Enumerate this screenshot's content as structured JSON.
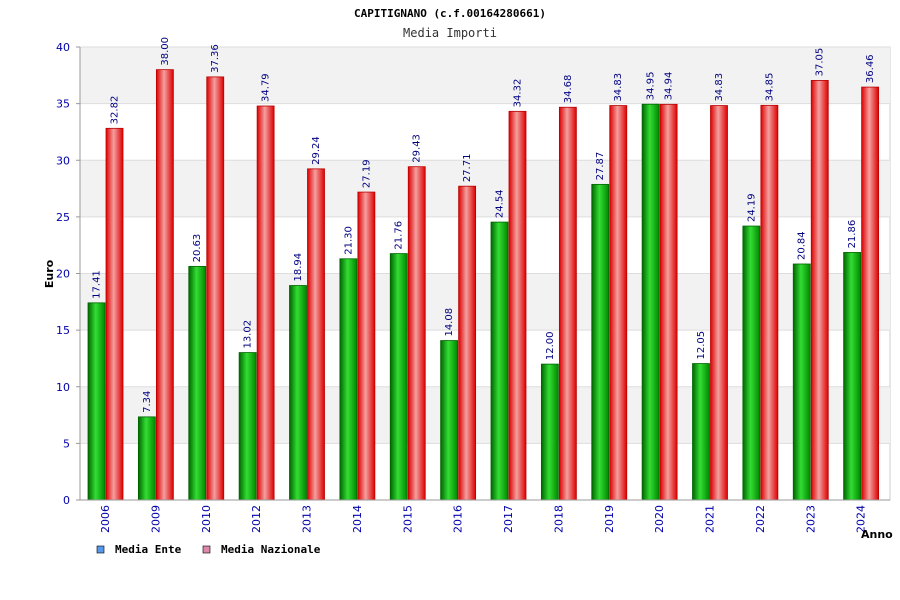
{
  "chart_data": {
    "type": "bar",
    "title": "CAPITIGNANO (c.f.00164280661)",
    "subtitle": "Media Importi",
    "xlabel": "Anno",
    "ylabel": "Euro",
    "ylim": [
      0,
      40
    ],
    "yticks": [
      0,
      5,
      10,
      15,
      20,
      25,
      30,
      35,
      40
    ],
    "grid": true,
    "legend_position": "bottom-left",
    "categories": [
      "2006",
      "2009",
      "2010",
      "2012",
      "2013",
      "2014",
      "2015",
      "2016",
      "2017",
      "2018",
      "2019",
      "2020",
      "2021",
      "2022",
      "2023",
      "2024"
    ],
    "series": [
      {
        "name": "Media Ente",
        "color": "#00aa00",
        "legend_color": "#5599ee",
        "values": [
          17.41,
          7.34,
          20.63,
          13.02,
          18.94,
          21.3,
          21.76,
          14.08,
          24.54,
          12.0,
          27.87,
          34.95,
          12.05,
          24.19,
          20.84,
          21.86
        ],
        "labels": [
          "17.41",
          "7.34",
          "20.63",
          "13.02",
          "18.94",
          "21.30",
          "21.76",
          "14.08",
          "24.54",
          "12.00",
          "27.87",
          "34.95",
          "12.05",
          "24.19",
          "20.84",
          "21.86"
        ]
      },
      {
        "name": "Media Nazionale",
        "color": "#ee1111",
        "legend_color": "#dd88aa",
        "values": [
          32.82,
          38.0,
          37.36,
          34.79,
          29.24,
          27.19,
          29.43,
          27.71,
          34.32,
          34.68,
          34.83,
          34.94,
          34.83,
          34.85,
          37.05,
          36.46
        ],
        "labels": [
          "32.82",
          "38.00",
          "37.36",
          "34.79",
          "29.24",
          "27.19",
          "29.43",
          "27.71",
          "34.32",
          "34.68",
          "34.83",
          "34.94",
          "34.83",
          "34.85",
          "37.05",
          "36.46"
        ]
      }
    ]
  }
}
